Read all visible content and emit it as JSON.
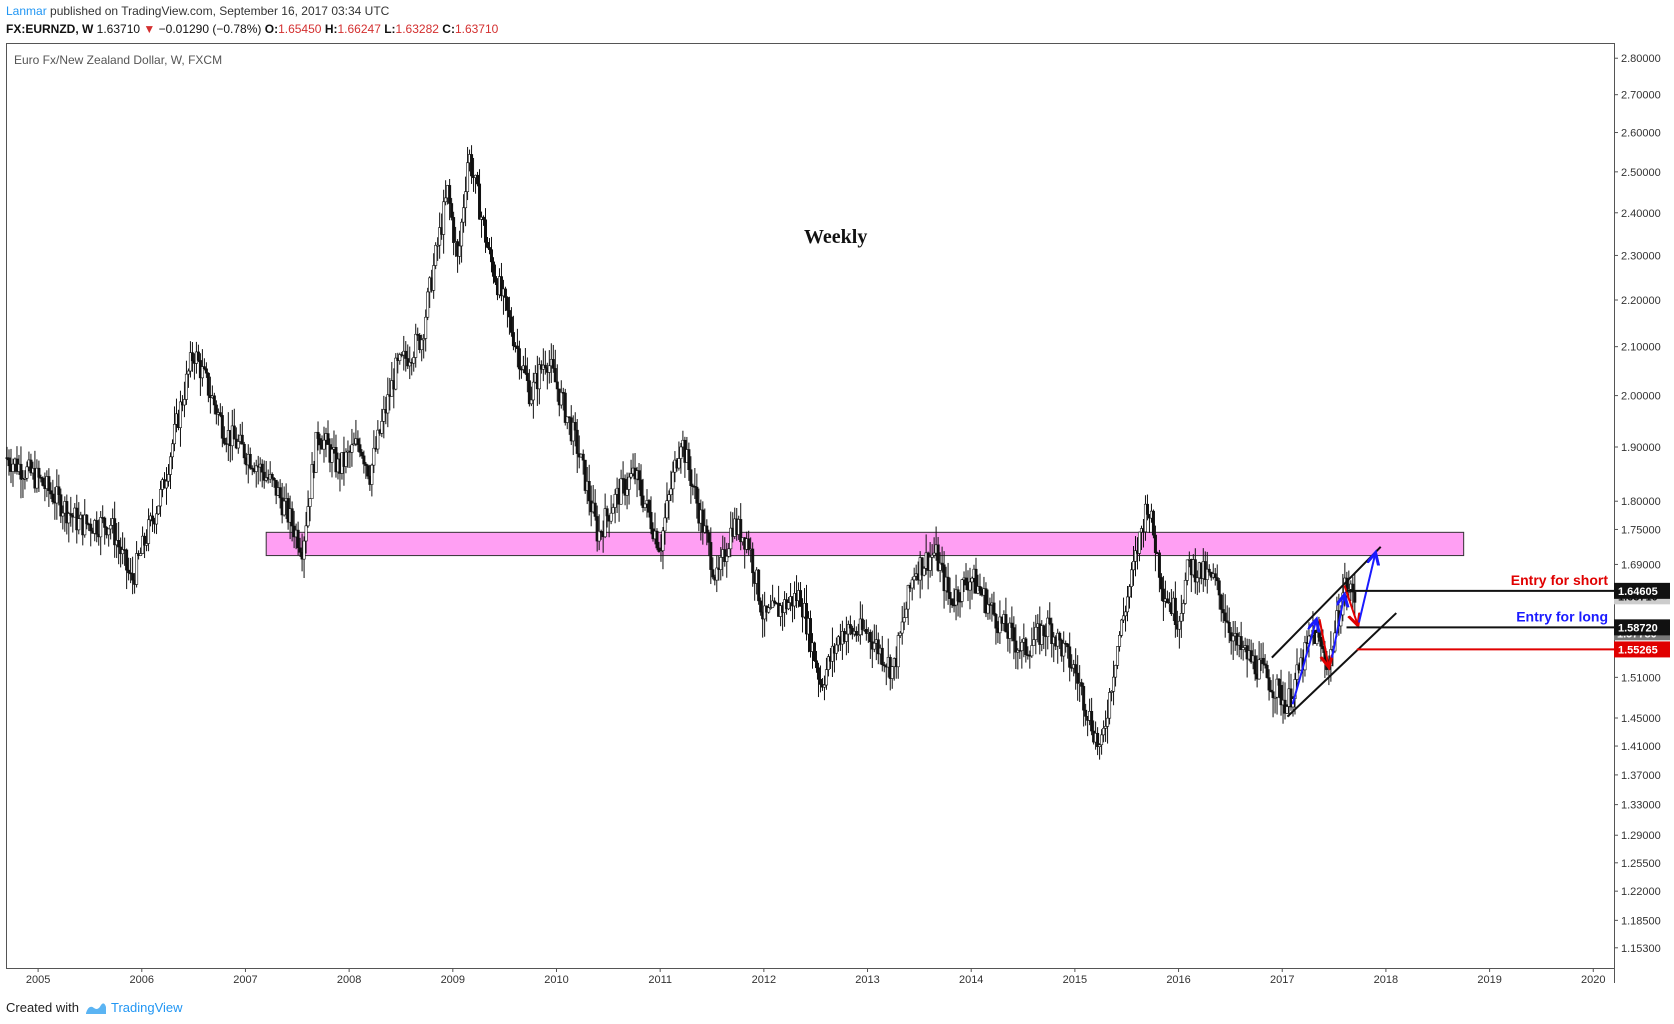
{
  "header": {
    "author": "Lanmar",
    "published": " published on TradingView.com, September 16, 2017 03:34 UTC"
  },
  "symbol_line": {
    "symbol": "FX:EURNZD, W",
    "last": "1.63710",
    "change": "−0.01290 (−0.78%)",
    "open_label": "O:",
    "open": "1.65450",
    "high_label": "H:",
    "high": "1.66247",
    "low_label": "L:",
    "low": "1.63282",
    "close_label": "C:",
    "close": "1.63710"
  },
  "footer": {
    "created_with": "Created with",
    "brand": "TradingView"
  },
  "colors": {
    "zone_fill": "#ff9ff3",
    "zone_stroke": "#333333",
    "short_red": "#e00000",
    "long_blue": "#1a1aff",
    "candle": "#111111",
    "current_tag": "#cccccc"
  },
  "chart_data": {
    "type": "candlestick",
    "title": "Euro Fx/New Zealand Dollar, W, FXCM",
    "annotation_weekly": "Weekly",
    "x_ticks": [
      "2005",
      "2006",
      "2007",
      "2008",
      "2009",
      "2010",
      "2011",
      "2012",
      "2013",
      "2014",
      "2015",
      "2016",
      "2017",
      "2018",
      "2019",
      "2020"
    ],
    "y_ticks": [
      "2.80000",
      "2.70000",
      "2.60000",
      "2.50000",
      "2.40000",
      "2.30000",
      "2.20000",
      "2.10000",
      "2.00000",
      "1.90000",
      "1.80000",
      "1.75000",
      "1.69000",
      "1.51000",
      "1.45000",
      "1.41000",
      "1.37000",
      "1.33000",
      "1.29000",
      "1.25500",
      "1.22000",
      "1.18500",
      "1.15300"
    ],
    "y_scale": "log",
    "ylim": [
      1.13,
      2.84
    ],
    "xlim": [
      2004.7,
      2020.2
    ],
    "key_points": [
      {
        "x": 2004.7,
        "y": 1.88
      },
      {
        "x": 2005.0,
        "y": 1.84
      },
      {
        "x": 2005.4,
        "y": 1.76
      },
      {
        "x": 2005.7,
        "y": 1.76
      },
      {
        "x": 2005.9,
        "y": 1.66
      },
      {
        "x": 2006.2,
        "y": 1.82
      },
      {
        "x": 2006.5,
        "y": 2.09
      },
      {
        "x": 2006.8,
        "y": 1.93
      },
      {
        "x": 2007.1,
        "y": 1.87
      },
      {
        "x": 2007.3,
        "y": 1.82
      },
      {
        "x": 2007.55,
        "y": 1.72
      },
      {
        "x": 2007.7,
        "y": 1.93
      },
      {
        "x": 2007.9,
        "y": 1.86
      },
      {
        "x": 2008.1,
        "y": 1.91
      },
      {
        "x": 2008.2,
        "y": 1.85
      },
      {
        "x": 2008.45,
        "y": 2.05
      },
      {
        "x": 2008.7,
        "y": 2.12
      },
      {
        "x": 2008.95,
        "y": 2.45
      },
      {
        "x": 2009.05,
        "y": 2.28
      },
      {
        "x": 2009.15,
        "y": 2.55
      },
      {
        "x": 2009.35,
        "y": 2.3
      },
      {
        "x": 2009.55,
        "y": 2.15
      },
      {
        "x": 2009.75,
        "y": 2.0
      },
      {
        "x": 2009.9,
        "y": 2.08
      },
      {
        "x": 2010.2,
        "y": 1.9
      },
      {
        "x": 2010.4,
        "y": 1.74
      },
      {
        "x": 2010.55,
        "y": 1.8
      },
      {
        "x": 2010.75,
        "y": 1.85
      },
      {
        "x": 2011.0,
        "y": 1.72
      },
      {
        "x": 2011.2,
        "y": 1.92
      },
      {
        "x": 2011.35,
        "y": 1.8
      },
      {
        "x": 2011.55,
        "y": 1.66
      },
      {
        "x": 2011.7,
        "y": 1.76
      },
      {
        "x": 2011.85,
        "y": 1.73
      },
      {
        "x": 2012.0,
        "y": 1.6
      },
      {
        "x": 2012.35,
        "y": 1.64
      },
      {
        "x": 2012.55,
        "y": 1.5
      },
      {
        "x": 2012.75,
        "y": 1.58
      },
      {
        "x": 2013.0,
        "y": 1.58
      },
      {
        "x": 2013.25,
        "y": 1.52
      },
      {
        "x": 2013.45,
        "y": 1.68
      },
      {
        "x": 2013.65,
        "y": 1.71
      },
      {
        "x": 2013.8,
        "y": 1.63
      },
      {
        "x": 2014.0,
        "y": 1.67
      },
      {
        "x": 2014.25,
        "y": 1.6
      },
      {
        "x": 2014.5,
        "y": 1.55
      },
      {
        "x": 2014.75,
        "y": 1.59
      },
      {
        "x": 2015.0,
        "y": 1.52
      },
      {
        "x": 2015.25,
        "y": 1.4
      },
      {
        "x": 2015.4,
        "y": 1.55
      },
      {
        "x": 2015.55,
        "y": 1.67
      },
      {
        "x": 2015.7,
        "y": 1.8
      },
      {
        "x": 2015.85,
        "y": 1.65
      },
      {
        "x": 2016.0,
        "y": 1.6
      },
      {
        "x": 2016.1,
        "y": 1.69
      },
      {
        "x": 2016.35,
        "y": 1.66
      },
      {
        "x": 2016.55,
        "y": 1.56
      },
      {
        "x": 2016.8,
        "y": 1.52
      },
      {
        "x": 2017.05,
        "y": 1.47
      },
      {
        "x": 2017.3,
        "y": 1.58
      },
      {
        "x": 2017.45,
        "y": 1.53
      },
      {
        "x": 2017.6,
        "y": 1.655
      },
      {
        "x": 2017.7,
        "y": 1.6371
      }
    ],
    "resistance_zone": {
      "y_low": 1.705,
      "y_high": 1.745,
      "x_start": 2007.2,
      "x_end": 2018.75
    },
    "channel": {
      "upper": [
        {
          "x": 2016.9,
          "y": 1.54
        },
        {
          "x": 2017.95,
          "y": 1.72
        }
      ],
      "lower": [
        {
          "x": 2017.05,
          "y": 1.452
        },
        {
          "x": 2018.1,
          "y": 1.61
        }
      ]
    },
    "levels": [
      {
        "label": "Entry for short",
        "price": "1.64605",
        "y": 1.64605,
        "color": "#e00000",
        "line_color": "#111111"
      },
      {
        "label": "Entry for long",
        "price": "1.58720",
        "y": 1.5872,
        "color": "#1a1aff",
        "line_color": "#111111"
      },
      {
        "label": "",
        "price": "1.55265",
        "y": 1.55265,
        "color": "#e00000",
        "line_color": "#e00000"
      }
    ],
    "current_price": {
      "price": "1.63710",
      "y": 1.6371
    },
    "hidden_tag": {
      "price": "1.57780",
      "y": 1.5778
    }
  }
}
